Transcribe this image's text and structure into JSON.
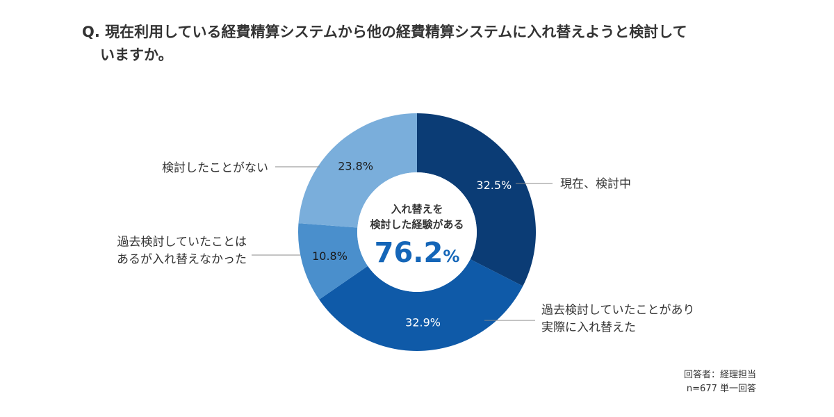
{
  "question": {
    "line1": "Q. 現在利用している経費精算システムから他の経費精算システムに入れ替えようと検討して",
    "line2": "いますか。"
  },
  "chart_data": {
    "type": "pie",
    "donut": true,
    "categories": [
      "現在、検討中",
      "過去検討していたことがあり実際に入れ替えた",
      "過去検討していたことはあるが入れ替えなかった",
      "検討したことがない"
    ],
    "values": [
      32.5,
      32.9,
      10.8,
      23.8
    ],
    "value_labels": [
      "32.5%",
      "32.9%",
      "10.8%",
      "23.8%"
    ],
    "label_lines": [
      [
        "現在、検討中"
      ],
      [
        "過去検討していたことがあり",
        "実際に入れ替えた"
      ],
      [
        "過去検討していたことは",
        "あるが入れ替えなかった"
      ],
      [
        "検討したことがない"
      ]
    ],
    "colors": [
      "#0b3c75",
      "#0f5aa8",
      "#4a8fcc",
      "#7aaedb"
    ],
    "center": {
      "line1": "入れ替えを",
      "line2": "検討した経験がある",
      "value": "76.2",
      "unit": "%",
      "value_color": "#1566b8"
    }
  },
  "footnote": {
    "line1": "回答者：経理担当",
    "line2": "n=677 単一回答"
  }
}
